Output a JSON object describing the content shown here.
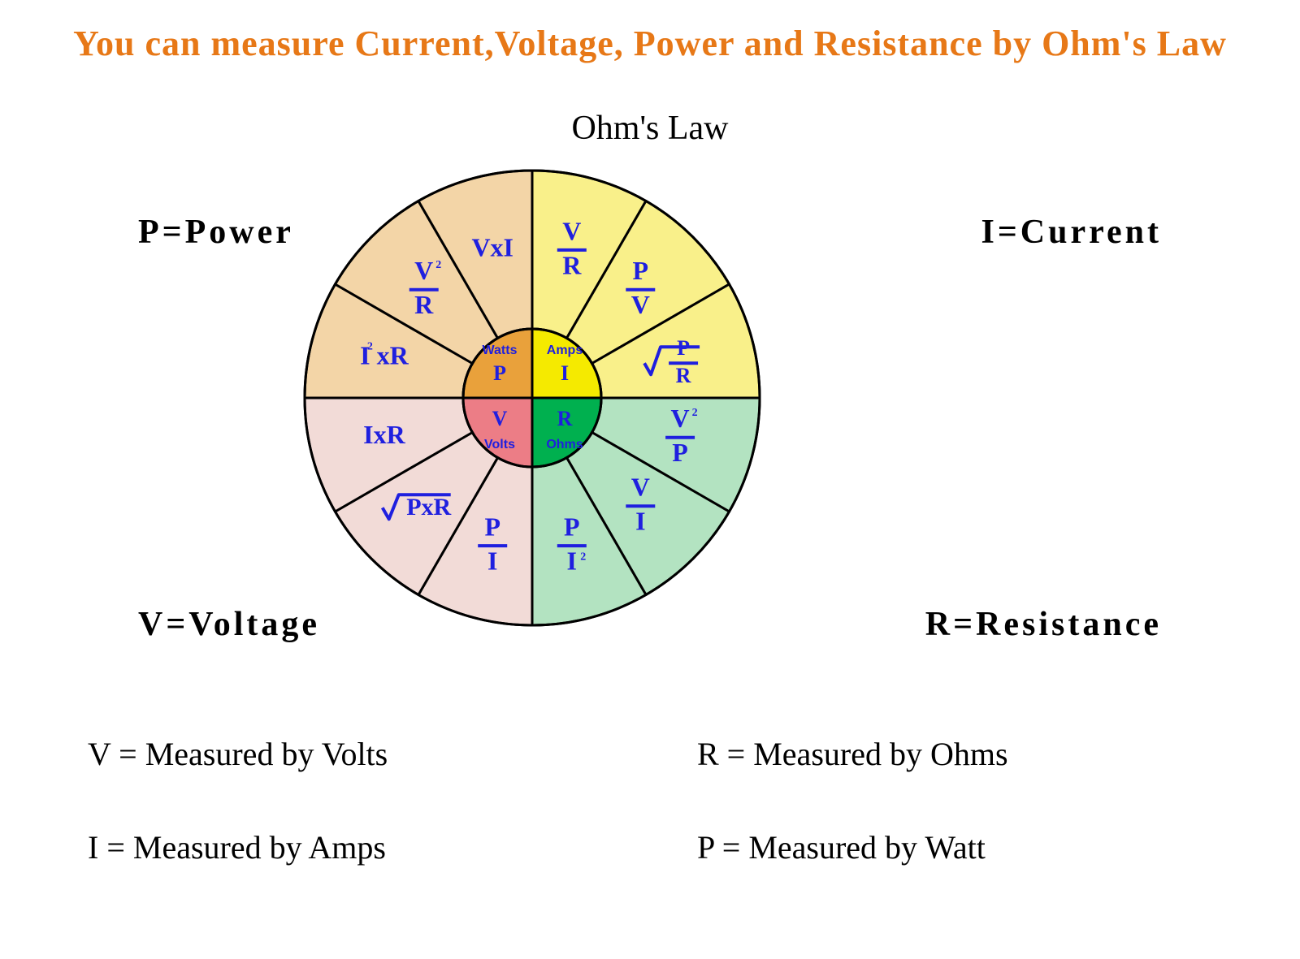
{
  "title": "You can measure Current,Voltage, Power and Resistance by Ohm's Law",
  "law_label": "Ohm's Law",
  "quadrants": {
    "P": {
      "label": "P=Power",
      "color": "#f3d5a7"
    },
    "I": {
      "label": "I=Current",
      "color": "#f9f08a"
    },
    "V": {
      "label": "V=Voltage",
      "color": "#f2dbd7"
    },
    "R": {
      "label": "R=Resistance",
      "color": "#b3e3c1"
    }
  },
  "center": {
    "P": {
      "unit": "Watts",
      "symbol": "P",
      "color": "#e9a13b"
    },
    "I": {
      "unit": "Amps",
      "symbol": "I",
      "color": "#f5ea00"
    },
    "V": {
      "unit": "Volts",
      "symbol": "V",
      "color": "#ec7d86"
    },
    "R": {
      "unit": "Ohms",
      "symbol": "R",
      "color": "#00b04f"
    }
  },
  "formulas": {
    "P": [
      "I²xR",
      "V²/R",
      "VxI"
    ],
    "I": [
      "V/R",
      "P/V",
      "√(P/R)"
    ],
    "R": [
      "V²/P",
      "V/I",
      "P/I²"
    ],
    "V": [
      "IxR",
      "√(PxR)",
      "P/I"
    ]
  },
  "measures": {
    "V": "V = Measured by Volts",
    "I": "I = Measured by Amps",
    "R": "R = Measured by Ohms",
    "P": "P = Measured by Watt"
  },
  "style": {
    "background": "#ffffff",
    "title_color": "#e77817",
    "formula_color": "#1f1fdf",
    "stroke_color": "#000000",
    "outer_radius": 280,
    "inner_radius": 85,
    "stroke_width": 3,
    "title_fontsize": 44,
    "law_label_fontsize": 42,
    "quad_label_fontsize": 42,
    "measure_fontsize": 40,
    "formula_fontsize": 32
  }
}
